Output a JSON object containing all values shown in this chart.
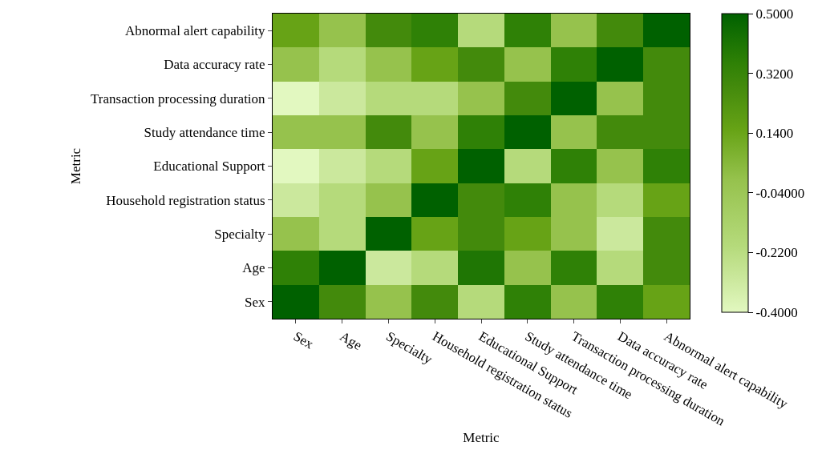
{
  "chart_data": {
    "type": "heatmap",
    "xlabel": "Metric",
    "ylabel": "Metric",
    "categories": [
      "Sex",
      "Age",
      "Specialty",
      "Household registration status",
      "Educational Support",
      "Study attendance time",
      "Transaction processing duration",
      "Data accuracy rate",
      "Abnormal alert capability"
    ],
    "y_categories": [
      "Abnormal alert capability",
      "Data accuracy rate",
      "Transaction processing duration",
      "Study attendance time",
      "Educational Support",
      "Household registration status",
      "Specialty",
      "Age",
      "Sex"
    ],
    "cells": [
      [
        0.15,
        0,
        0.28,
        0.35,
        -0.2,
        0.35,
        0,
        0.28,
        0.5
      ],
      [
        0,
        -0.2,
        0,
        0.15,
        0.28,
        0,
        0.35,
        0.5,
        0.28
      ],
      [
        -0.4,
        -0.3,
        -0.2,
        -0.2,
        0,
        0.28,
        0.5,
        0,
        0.28
      ],
      [
        0,
        0,
        0.28,
        0,
        0.35,
        0.5,
        0,
        0.28,
        0.28
      ],
      [
        -0.4,
        -0.3,
        -0.2,
        0.15,
        0.5,
        -0.2,
        0.35,
        0,
        0.35
      ],
      [
        -0.3,
        -0.2,
        0,
        0.5,
        0.28,
        0.35,
        0,
        -0.2,
        0.15
      ],
      [
        0,
        -0.2,
        0.5,
        0.15,
        0.28,
        0.15,
        0,
        -0.3,
        0.28
      ],
      [
        0.35,
        0.5,
        -0.3,
        -0.2,
        0.4,
        0,
        0.35,
        -0.2,
        0.28
      ],
      [
        0.5,
        0.28,
        0,
        0.28,
        -0.2,
        0.35,
        0,
        0.35,
        0.15
      ]
    ],
    "clim": [
      -0.4,
      0.5
    ],
    "cticks": [
      {
        "value": 0.5,
        "label": "0.5000"
      },
      {
        "value": 0.32,
        "label": "0.3200"
      },
      {
        "value": 0.14,
        "label": "0.1400"
      },
      {
        "value": -0.04,
        "label": "-0.04000"
      },
      {
        "value": -0.22,
        "label": "-0.2200"
      },
      {
        "value": -0.4,
        "label": "-0.4000"
      }
    ]
  }
}
